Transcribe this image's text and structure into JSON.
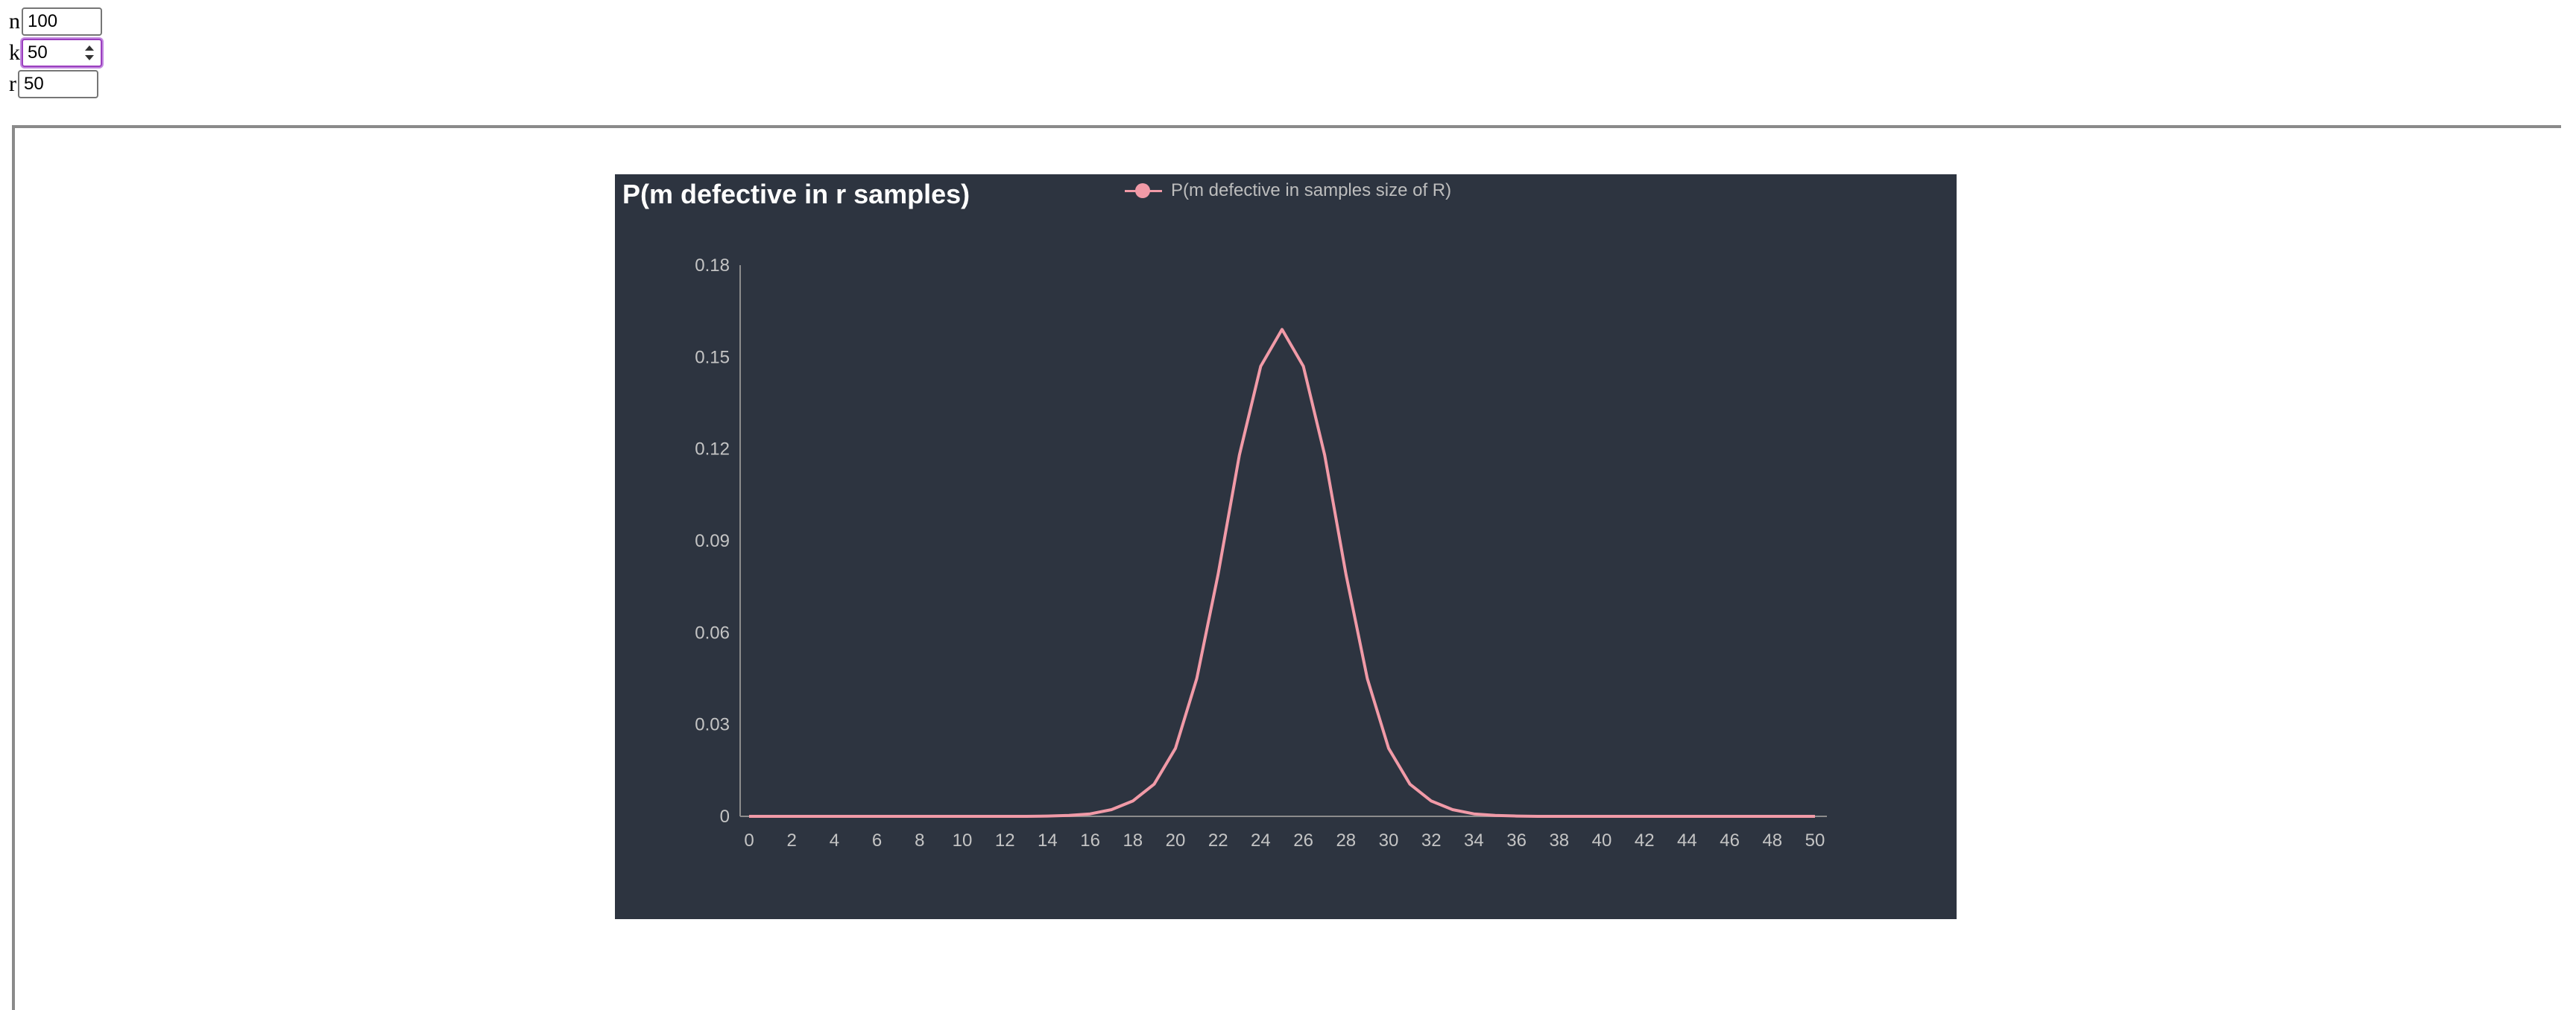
{
  "inputs": {
    "n": {
      "label": "n",
      "value": "100"
    },
    "k": {
      "label": "k",
      "value": "50"
    },
    "r": {
      "label": "r",
      "value": "50"
    }
  },
  "colors": {
    "chart_background": "#2d3440",
    "series_line": "#f19aa7",
    "axis": "#8c8c8c",
    "tick_text": "#c4c4c4",
    "title_text": "#ffffff",
    "focus_border": "#9b3fbf"
  },
  "chart_data": {
    "type": "line",
    "title": "P(m defective in r samples)",
    "legend_position": "top-center",
    "grid": false,
    "xlabel": "",
    "ylabel": "",
    "xlim": [
      0,
      50
    ],
    "ylim": [
      0,
      0.18
    ],
    "x_ticks": [
      0,
      2,
      4,
      6,
      8,
      10,
      12,
      14,
      16,
      18,
      20,
      22,
      24,
      26,
      28,
      30,
      32,
      34,
      36,
      38,
      40,
      42,
      44,
      46,
      48,
      50
    ],
    "y_ticks": [
      0,
      0.03,
      0.06,
      0.09,
      0.12,
      0.15,
      0.18
    ],
    "y_tick_labels": [
      "0",
      "0.03",
      "0.06",
      "0.09",
      "0.12",
      "0.15",
      "0.18"
    ],
    "series": [
      {
        "name": "P(m defective in samples size of R)",
        "x": [
          0,
          1,
          2,
          3,
          4,
          5,
          6,
          7,
          8,
          9,
          10,
          11,
          12,
          13,
          14,
          15,
          16,
          17,
          18,
          19,
          20,
          21,
          22,
          23,
          24,
          25,
          26,
          27,
          28,
          29,
          30,
          31,
          32,
          33,
          34,
          35,
          36,
          37,
          38,
          39,
          40,
          41,
          42,
          43,
          44,
          45,
          46,
          47,
          48,
          49,
          50
        ],
        "y": [
          0,
          0,
          0,
          0,
          0,
          0,
          0,
          0,
          0,
          0,
          0,
          0,
          0,
          0,
          0.0001,
          0.0003,
          0.0008,
          0.0022,
          0.005,
          0.0105,
          0.0222,
          0.045,
          0.079,
          0.118,
          0.147,
          0.159,
          0.147,
          0.118,
          0.079,
          0.045,
          0.0222,
          0.0105,
          0.005,
          0.0022,
          0.0008,
          0.0003,
          0.0001,
          0,
          0,
          0,
          0,
          0,
          0,
          0,
          0,
          0,
          0,
          0,
          0,
          0,
          0
        ]
      }
    ]
  }
}
